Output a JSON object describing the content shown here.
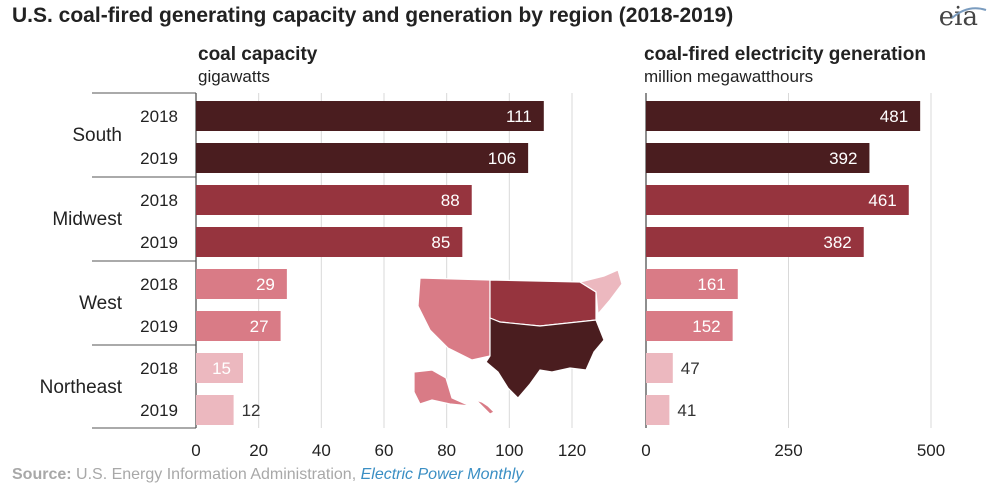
{
  "title": "U.S. coal-fired generating capacity and generation by region (2018-2019)",
  "logo": "eia",
  "source": {
    "label": "Source:",
    "text": " U.S. Energy Information Administration, ",
    "link": "Electric Power Monthly"
  },
  "colors": {
    "South": "#4a1d1f",
    "Midwest": "#96343e",
    "West": "#d97b86",
    "Northeast": "#ecb8bf",
    "grid": "#d9d9d9",
    "axis": "#444444"
  },
  "chart_data": [
    {
      "type": "bar",
      "orientation": "horizontal",
      "title": "coal capacity",
      "unit": "gigawatts",
      "groups": [
        "South",
        "Midwest",
        "West",
        "Northeast"
      ],
      "categories": [
        "2018",
        "2019"
      ],
      "values": {
        "South": [
          111,
          106
        ],
        "Midwest": [
          88,
          85
        ],
        "West": [
          29,
          27
        ],
        "Northeast": [
          15,
          12
        ]
      },
      "xlim": [
        0,
        120
      ],
      "xticks": [
        0,
        20,
        40,
        60,
        80,
        100,
        120
      ],
      "grid": true
    },
    {
      "type": "bar",
      "orientation": "horizontal",
      "title": "coal-fired electricity generation",
      "unit": "million megawatthours",
      "groups": [
        "South",
        "Midwest",
        "West",
        "Northeast"
      ],
      "categories": [
        "2018",
        "2019"
      ],
      "values": {
        "South": [
          481,
          392
        ],
        "Midwest": [
          461,
          382
        ],
        "West": [
          161,
          152
        ],
        "Northeast": [
          47,
          41
        ]
      },
      "xlim": [
        0,
        500
      ],
      "xticks": [
        0,
        250,
        500
      ],
      "grid": true
    }
  ]
}
